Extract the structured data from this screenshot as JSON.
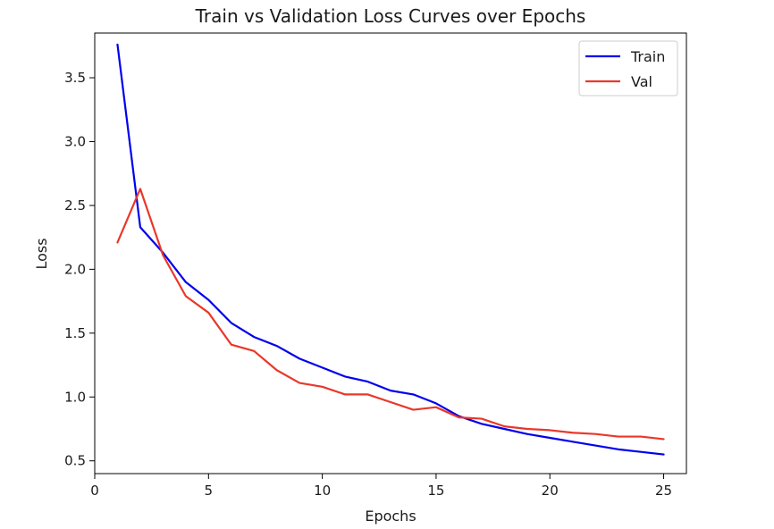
{
  "chart_data": {
    "type": "line",
    "title": "Train vs Validation Loss Curves over Epochs",
    "xlabel": "Epochs",
    "ylabel": "Loss",
    "xlim": [
      0,
      26
    ],
    "ylim": [
      0.4,
      3.85
    ],
    "xticks": [
      0,
      5,
      10,
      15,
      20,
      25
    ],
    "yticks": [
      0.5,
      1.0,
      1.5,
      2.0,
      2.5,
      3.0,
      3.5
    ],
    "grid": false,
    "legend_position": "top-right",
    "x": [
      1,
      2,
      3,
      4,
      5,
      6,
      7,
      8,
      9,
      10,
      11,
      12,
      13,
      14,
      15,
      16,
      17,
      18,
      19,
      20,
      21,
      22,
      23,
      24,
      25
    ],
    "series": [
      {
        "name": "Train",
        "color": "#0000ee",
        "values": [
          3.76,
          2.33,
          2.13,
          1.9,
          1.76,
          1.58,
          1.47,
          1.4,
          1.3,
          1.23,
          1.16,
          1.12,
          1.05,
          1.02,
          0.95,
          0.85,
          0.79,
          0.75,
          0.71,
          0.68,
          0.65,
          0.62,
          0.59,
          0.57,
          0.55
        ]
      },
      {
        "name": "Val",
        "color": "#e8382a",
        "values": [
          2.21,
          2.63,
          2.11,
          1.79,
          1.66,
          1.41,
          1.36,
          1.21,
          1.11,
          1.08,
          1.02,
          1.02,
          0.96,
          0.9,
          0.92,
          0.84,
          0.83,
          0.77,
          0.75,
          0.74,
          0.72,
          0.71,
          0.69,
          0.69,
          0.67
        ]
      }
    ]
  }
}
